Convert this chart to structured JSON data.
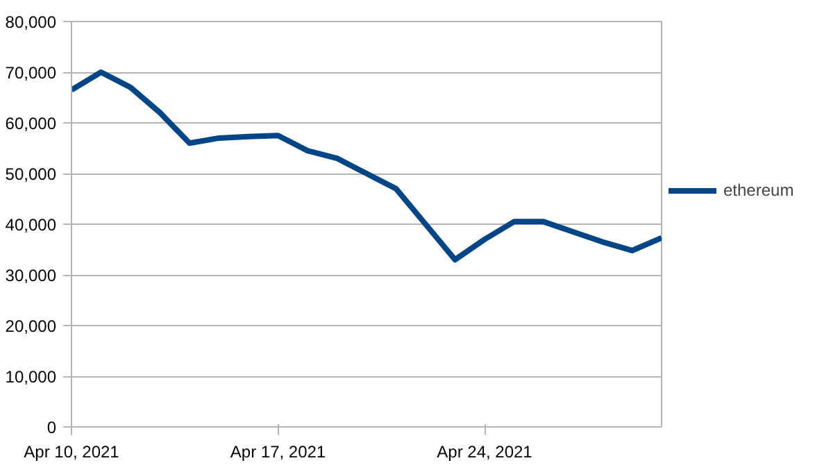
{
  "chart_data": {
    "type": "line",
    "x": [
      "2021-04-10",
      "2021-04-11",
      "2021-04-12",
      "2021-04-13",
      "2021-04-14",
      "2021-04-15",
      "2021-04-16",
      "2021-04-17",
      "2021-04-18",
      "2021-04-19",
      "2021-04-20",
      "2021-04-21",
      "2021-04-22",
      "2021-04-23",
      "2021-04-24",
      "2021-04-25",
      "2021-04-26",
      "2021-04-27",
      "2021-04-28",
      "2021-04-29",
      "2021-04-30"
    ],
    "series": [
      {
        "name": "ethereum",
        "color": "#004586",
        "values": [
          66500,
          70000,
          67000,
          62000,
          56000,
          57000,
          57300,
          57500,
          54500,
          53000,
          50000,
          47000,
          40000,
          33000,
          37000,
          40500,
          40500,
          38500,
          36500,
          34800,
          37300
        ]
      }
    ],
    "xlim": [
      "2021-04-10",
      "2021-04-30"
    ],
    "xticks": [
      {
        "value": "2021-04-10",
        "label": "Apr 10, 2021"
      },
      {
        "value": "2021-04-17",
        "label": "Apr 17, 2021"
      },
      {
        "value": "2021-04-24",
        "label": "Apr 24, 2021"
      }
    ],
    "ylim": [
      0,
      80000
    ],
    "yticks": [
      {
        "value": 0,
        "label": "0"
      },
      {
        "value": 10000,
        "label": "10,000"
      },
      {
        "value": 20000,
        "label": "20,000"
      },
      {
        "value": 30000,
        "label": "30,000"
      },
      {
        "value": 40000,
        "label": "40,000"
      },
      {
        "value": 50000,
        "label": "50,000"
      },
      {
        "value": 60000,
        "label": "60,000"
      },
      {
        "value": 70000,
        "label": "70,000"
      },
      {
        "value": 80000,
        "label": "80,000"
      }
    ],
    "grid": "y",
    "legend": "right",
    "marker": "none",
    "line_style": "solid"
  }
}
